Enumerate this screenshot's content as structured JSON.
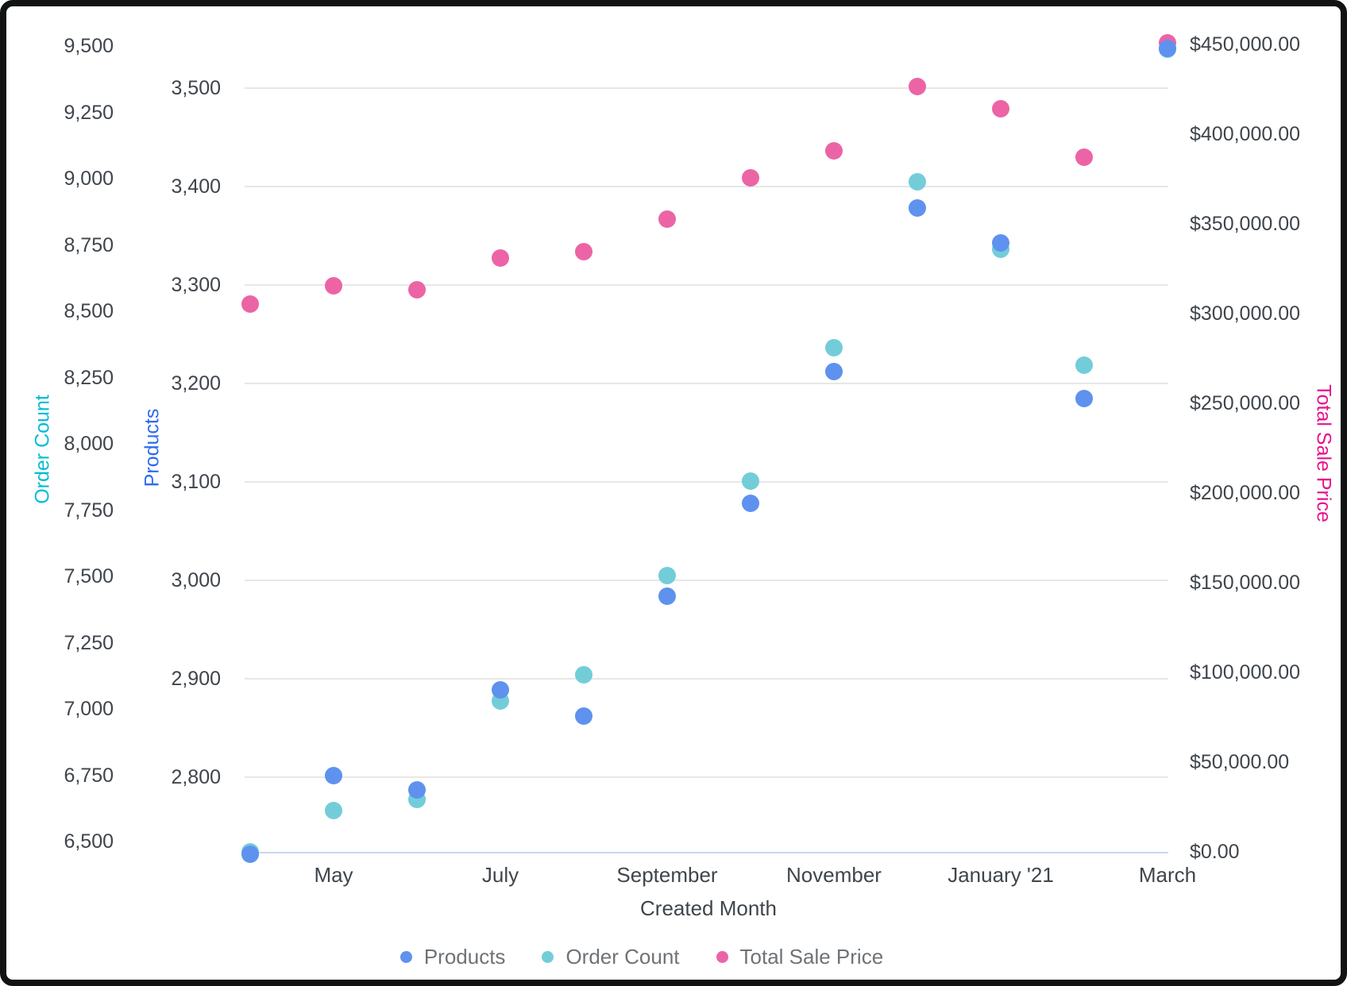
{
  "chart_data": {
    "type": "scatter",
    "title": "",
    "xlabel": "Created Month",
    "x_axis": {
      "title": "Created Month",
      "month_count": 12,
      "tick_labels": [
        {
          "month_index": 1,
          "label": "May"
        },
        {
          "month_index": 3,
          "label": "July"
        },
        {
          "month_index": 5,
          "label": "September"
        },
        {
          "month_index": 7,
          "label": "November"
        },
        {
          "month_index": 9,
          "label": "January '21"
        },
        {
          "month_index": 11,
          "label": "March"
        }
      ]
    },
    "axes": {
      "order_count": {
        "title": "Order Count",
        "title_color": "#00bcd4",
        "range": [
          6460,
          9500
        ],
        "ticks": [
          {
            "value": 6500,
            "label": "6,500"
          },
          {
            "value": 6750,
            "label": "6,750"
          },
          {
            "value": 7000,
            "label": "7,000"
          },
          {
            "value": 7250,
            "label": "7,250"
          },
          {
            "value": 7500,
            "label": "7,500"
          },
          {
            "value": 7750,
            "label": "7,750"
          },
          {
            "value": 8000,
            "label": "8,000"
          },
          {
            "value": 8250,
            "label": "8,250"
          },
          {
            "value": 8500,
            "label": "8,500"
          },
          {
            "value": 8750,
            "label": "8,750"
          },
          {
            "value": 9000,
            "label": "9,000"
          },
          {
            "value": 9250,
            "label": "9,250"
          },
          {
            "value": 9500,
            "label": "9,500"
          }
        ]
      },
      "products": {
        "title": "Products",
        "title_color": "#2d6bf2",
        "range": [
          2722,
          3540
        ],
        "gridlines": true,
        "ticks": [
          {
            "value": 2800,
            "label": "2,800"
          },
          {
            "value": 2900,
            "label": "2,900"
          },
          {
            "value": 3000,
            "label": "3,000"
          },
          {
            "value": 3100,
            "label": "3,100"
          },
          {
            "value": 3200,
            "label": "3,200"
          },
          {
            "value": 3300,
            "label": "3,300"
          },
          {
            "value": 3400,
            "label": "3,400"
          },
          {
            "value": 3500,
            "label": "3,500"
          }
        ]
      },
      "price": {
        "title": "Total Sale Price",
        "title_color": "#e8118c",
        "range": [
          0,
          450000
        ],
        "ticks": [
          {
            "value": 0,
            "label": "$0.00"
          },
          {
            "value": 50000,
            "label": "$50,000.00"
          },
          {
            "value": 100000,
            "label": "$100,000.00"
          },
          {
            "value": 150000,
            "label": "$150,000.00"
          },
          {
            "value": 200000,
            "label": "$200,000.00"
          },
          {
            "value": 250000,
            "label": "$250,000.00"
          },
          {
            "value": 300000,
            "label": "$300,000.00"
          },
          {
            "value": 350000,
            "label": "$350,000.00"
          },
          {
            "value": 400000,
            "label": "$400,000.00"
          },
          {
            "value": 450000,
            "label": "$450,000.00"
          }
        ]
      }
    },
    "series": [
      {
        "name": "Products",
        "axis": "products",
        "color": "#5e92ee",
        "values": [
          2722,
          2802,
          2787,
          2889,
          2862,
          2984,
          3078,
          3212,
          3378,
          3343,
          3185,
          3540
        ]
      },
      {
        "name": "Order Count",
        "axis": "order_count",
        "color": "#73cdd9",
        "values": [
          6462,
          6617,
          6659,
          7031,
          7129,
          7503,
          7859,
          8362,
          8988,
          8733,
          8296,
          9489
        ]
      },
      {
        "name": "Total Sale Price",
        "axis": "price",
        "color": "#ec64a6",
        "values": [
          305300,
          315500,
          313300,
          331000,
          334500,
          352700,
          375700,
          390700,
          426500,
          414200,
          387200,
          450800
        ]
      }
    ],
    "legend": [
      {
        "label": "Products",
        "color": "#5e92ee"
      },
      {
        "label": "Order Count",
        "color": "#73cdd9"
      },
      {
        "label": "Total Sale Price",
        "color": "#ec64a6"
      }
    ]
  }
}
